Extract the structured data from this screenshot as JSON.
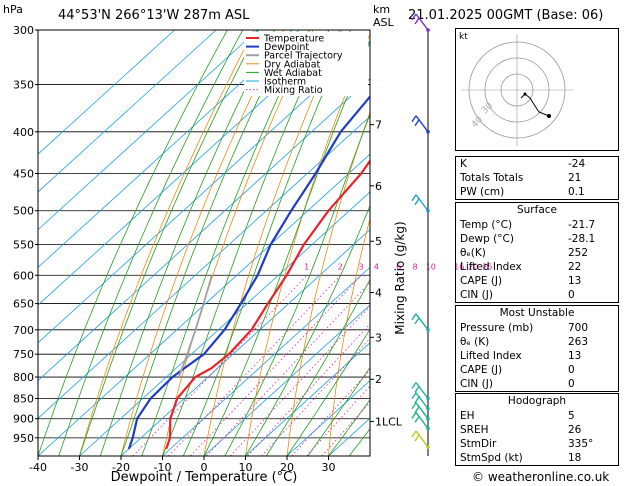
{
  "header": {
    "pressure_unit": "hPa",
    "location": "44°53'N 266°13'W 287m ASL",
    "height_unit": "km",
    "height_sub": "ASL",
    "datetime": "21.01.2025 00GMT (Base: 06)"
  },
  "legend": [
    "Temperature",
    "Dewpoint",
    "Parcel Trajectory",
    "Dry Adiabat",
    "Wet Adiabat",
    "Isotherm",
    "Mixing Ratio"
  ],
  "colors": {
    "temperature": "#e8242a",
    "dewpoint": "#1e3cc8",
    "parcel": "#a0a0a0",
    "dry_adiabat": "#f08a10",
    "wet_adiabat": "#20a020",
    "isotherm": "#1ea0e6",
    "mixing_ratio": "#e020a0"
  },
  "chart_data": {
    "type": "line",
    "title": "",
    "xlabel": "Dewpoint / Temperature (°C)",
    "ylabel_right": "Mixing Ratio (g/kg)",
    "xlim": [
      -40,
      40
    ],
    "x_ticks": [
      -40,
      -30,
      -20,
      -10,
      0,
      10,
      20,
      30
    ],
    "pressure_levels": [
      300,
      350,
      400,
      450,
      500,
      550,
      600,
      650,
      700,
      750,
      800,
      850,
      900,
      950
    ],
    "km_labels": [
      {
        "km": "7",
        "p": 392
      },
      {
        "km": "6",
        "p": 466
      },
      {
        "km": "5",
        "p": 545
      },
      {
        "km": "4",
        "p": 630
      },
      {
        "km": "3",
        "p": 715
      },
      {
        "km": "2",
        "p": 805
      },
      {
        "km": "1LCL",
        "p": 907
      }
    ],
    "mixing_ratio_labels": [
      "1",
      "2",
      "3",
      "4",
      "6",
      "8",
      "10",
      "16",
      "20",
      "25"
    ],
    "series": [
      {
        "name": "Temperature",
        "points": [
          [
            300,
            -48
          ],
          [
            350,
            -45
          ],
          [
            400,
            -41
          ],
          [
            450,
            -37
          ],
          [
            500,
            -35
          ],
          [
            550,
            -32
          ],
          [
            600,
            -28
          ],
          [
            650,
            -25
          ],
          [
            700,
            -22
          ],
          [
            750,
            -21
          ],
          [
            780,
            -21.5
          ],
          [
            800,
            -23
          ],
          [
            850,
            -21.7
          ],
          [
            900,
            -18
          ],
          [
            950,
            -13
          ],
          [
            980,
            -11
          ]
        ]
      },
      {
        "name": "Dewpoint",
        "points": [
          [
            300,
            -58
          ],
          [
            350,
            -56
          ],
          [
            400,
            -53
          ],
          [
            450,
            -48
          ],
          [
            500,
            -44
          ],
          [
            550,
            -40
          ],
          [
            600,
            -35
          ],
          [
            650,
            -31.5
          ],
          [
            700,
            -28.5
          ],
          [
            750,
            -27
          ],
          [
            780,
            -28
          ],
          [
            800,
            -28.5
          ],
          [
            850,
            -28.1
          ],
          [
            900,
            -26
          ],
          [
            950,
            -22
          ],
          [
            980,
            -20
          ]
        ]
      },
      {
        "name": "Parcel Trajectory",
        "points": [
          [
            800,
            -27
          ],
          [
            750,
            -31
          ],
          [
            700,
            -35.5
          ],
          [
            650,
            -40.5
          ],
          [
            600,
            -46
          ]
        ]
      }
    ]
  },
  "indices": {
    "rows": [
      {
        "label": "K",
        "value": "-24"
      },
      {
        "label": "Totals Totals",
        "value": "21"
      },
      {
        "label": "PW (cm)",
        "value": "0.1"
      }
    ]
  },
  "surface": {
    "title": "Surface",
    "rows": [
      {
        "label": "Temp (°C)",
        "value": "-21.7"
      },
      {
        "label": "Dewp (°C)",
        "value": "-28.1"
      },
      {
        "label": "θₑ(K)",
        "value": "252"
      },
      {
        "label": "Lifted Index",
        "value": "22"
      },
      {
        "label": "CAPE (J)",
        "value": "13"
      },
      {
        "label": "CIN (J)",
        "value": "0"
      }
    ]
  },
  "most_unstable": {
    "title": "Most Unstable",
    "rows": [
      {
        "label": "Pressure (mb)",
        "value": "700"
      },
      {
        "label": "θₑ (K)",
        "value": "263"
      },
      {
        "label": "Lifted Index",
        "value": "13"
      },
      {
        "label": "CAPE (J)",
        "value": "0"
      },
      {
        "label": "CIN (J)",
        "value": "0"
      }
    ]
  },
  "hodograph": {
    "title": "Hodograph",
    "unit": "kt",
    "ring_labels": [
      "40",
      "30"
    ],
    "rows": [
      {
        "label": "EH",
        "value": "5"
      },
      {
        "label": "SREH",
        "value": "26"
      },
      {
        "label": "StmDir",
        "value": "335°"
      },
      {
        "label": "StmSpd (kt)",
        "value": "18"
      }
    ]
  },
  "credit": "© weatheronline.co.uk"
}
